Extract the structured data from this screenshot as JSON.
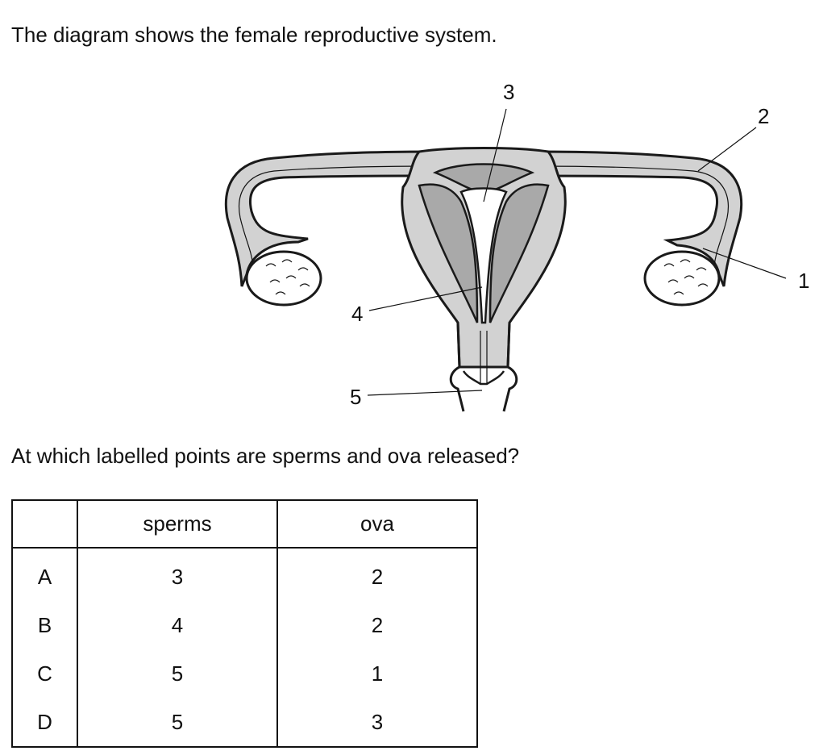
{
  "intro": "The diagram shows the female reproductive system.",
  "question": "At which labelled points are sperms and ova released?",
  "diagram": {
    "labels": [
      "1",
      "2",
      "3",
      "4",
      "5"
    ],
    "colors": {
      "tissue": "#d2d2d2",
      "dark_tissue": "#a9a9a9",
      "outline": "#1a1a1a",
      "ovary": "#ffffff"
    }
  },
  "table": {
    "headers": [
      "",
      "sperms",
      "ova"
    ],
    "rows": [
      {
        "option": "A",
        "sperms": "3",
        "ova": "2"
      },
      {
        "option": "B",
        "sperms": "4",
        "ova": "2"
      },
      {
        "option": "C",
        "sperms": "5",
        "ova": "1"
      },
      {
        "option": "D",
        "sperms": "5",
        "ova": "3"
      }
    ]
  }
}
